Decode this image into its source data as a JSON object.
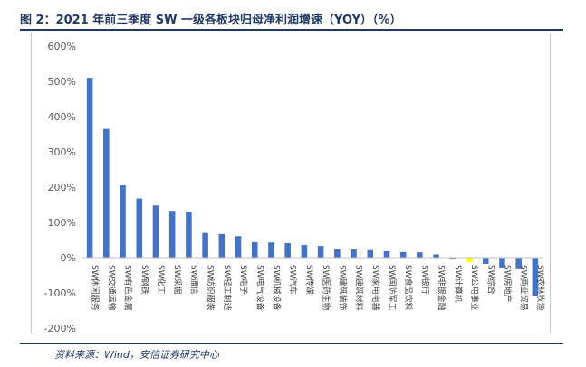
{
  "header": {
    "title": "图 2：2021 年前三季度 SW 一级各板块归母净利润增速（YOY）（%）"
  },
  "footer": {
    "source": "资料来源：Wind，安信证券研究中心"
  },
  "colors": {
    "bar": "#4472c4",
    "highlight": "#ffff00",
    "axis_text": "#595959",
    "title": "#1f3864"
  },
  "chart_data": {
    "type": "bar",
    "title": "2021 年前三季度 SW 一级各板块归母净利润增速（YOY）（%）",
    "xlabel": "",
    "ylabel": "",
    "ylim": [
      -200,
      600
    ],
    "y_ticks": [
      600,
      500,
      400,
      300,
      200,
      100,
      0,
      -100,
      -200
    ],
    "y_tick_labels": [
      "600%",
      "500%",
      "400%",
      "300%",
      "200%",
      "100%",
      "0%",
      "-100%",
      "-200%"
    ],
    "grid": false,
    "legend": "none",
    "highlight_category": "SW公用事业",
    "categories": [
      "SW休闲服务",
      "SW交通运输",
      "SW有色金属",
      "SW钢铁",
      "SW化工",
      "SW采掘",
      "SW通信",
      "SW纺织服装",
      "SW轻工制造",
      "SW电子",
      "SW电气设备",
      "SW机械设备",
      "SW汽车",
      "SW传媒",
      "SW医药生物",
      "SW建筑装饰",
      "SW建筑材料",
      "SW家用电器",
      "SW国防军工",
      "SW食品饮料",
      "SW银行",
      "SW非银金融",
      "SW计算机",
      "SW公用事业",
      "SW综合",
      "SW房地产",
      "SW商业贸易",
      "SW农林牧渔"
    ],
    "values": [
      510,
      365,
      205,
      168,
      148,
      133,
      130,
      70,
      67,
      61,
      44,
      43,
      41,
      36,
      33,
      24,
      23,
      21,
      18,
      16,
      15,
      9,
      -3,
      -13,
      -18,
      -28,
      -33,
      -108
    ]
  }
}
